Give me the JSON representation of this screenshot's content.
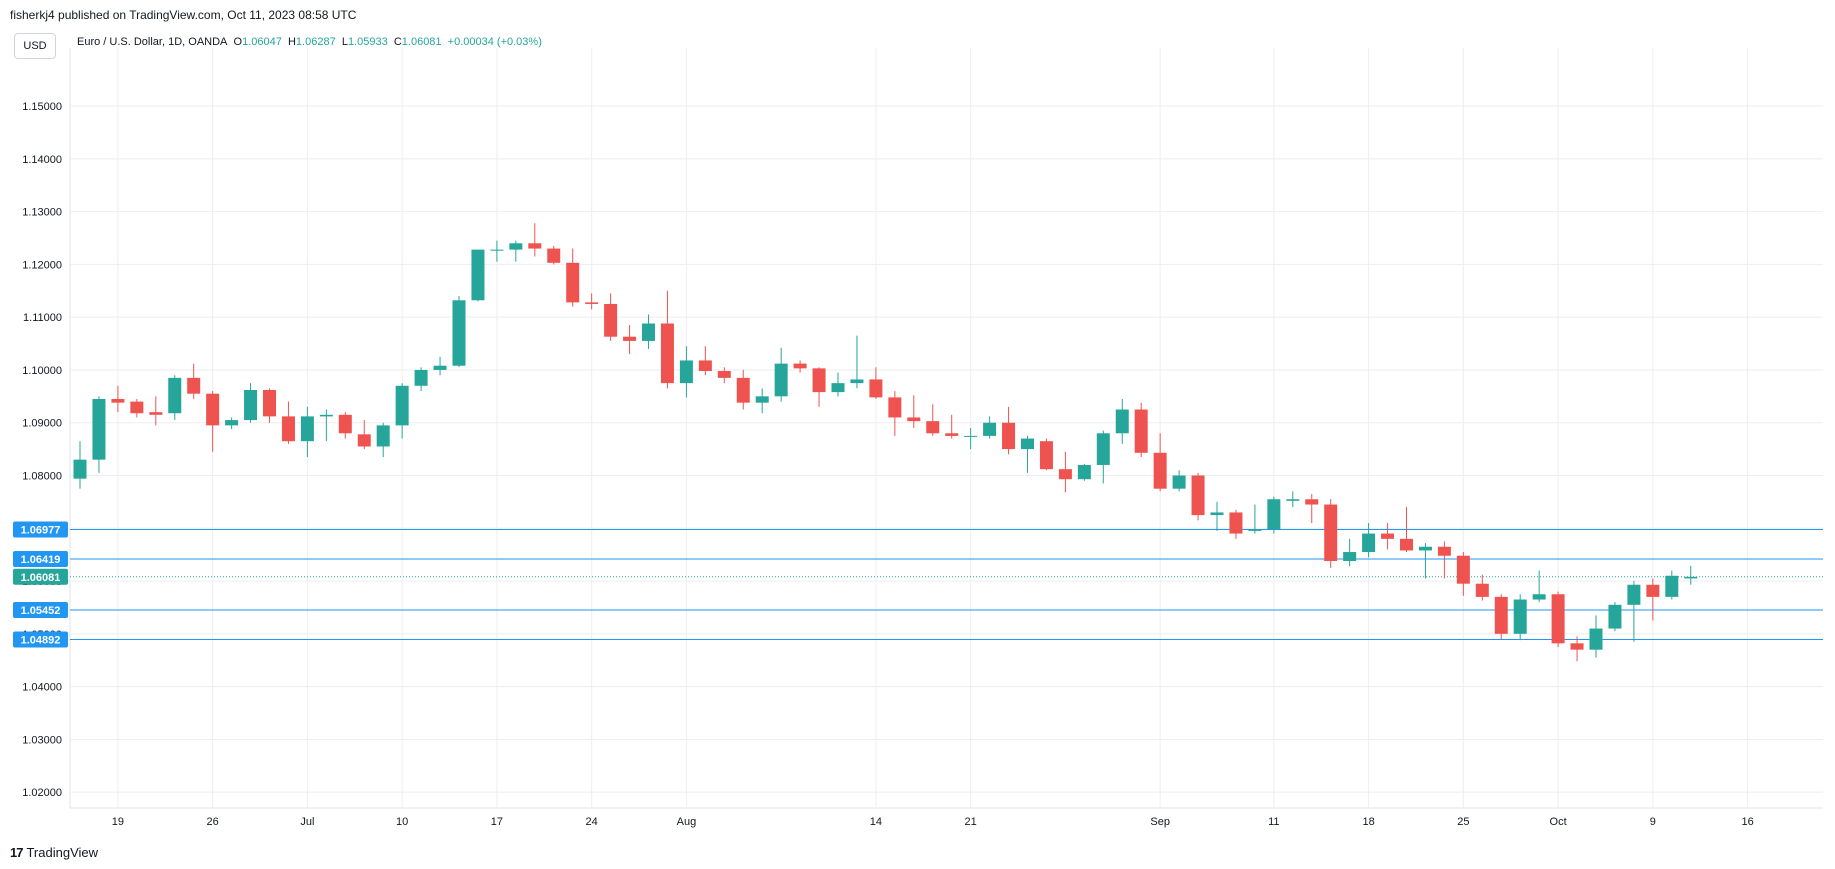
{
  "header": {
    "published": "fisherkj4 published on TradingView.com, Oct 11, 2023 08:58 UTC"
  },
  "toolbar": {
    "currency": "USD"
  },
  "legend": {
    "symbol": "Euro / U.S. Dollar, 1D, OANDA",
    "o_label": "O",
    "o_value": "1.06047",
    "h_label": "H",
    "h_value": "1.06287",
    "l_label": "L",
    "l_value": "1.05933",
    "c_label": "C",
    "c_value": "1.06081",
    "change": "+0.00034 (+0.03%)"
  },
  "footer": {
    "brand": "TradingView",
    "logo_text": "17"
  },
  "colors": {
    "up": "#26a69a",
    "down": "#ef5350",
    "hline": "#2196f3",
    "grid": "#eeeeee",
    "current": "#26a69a"
  },
  "chart_data": {
    "type": "candlestick",
    "title": "Euro / U.S. Dollar, 1D, OANDA",
    "ylim": [
      1.017,
      1.161
    ],
    "y_ticks": [
      "1.15000",
      "1.14000",
      "1.13000",
      "1.12000",
      "1.11000",
      "1.10000",
      "1.09000",
      "1.08000",
      "1.07000",
      "1.06000",
      "1.05000",
      "1.04000",
      "1.03000",
      "1.02000"
    ],
    "y_tick_values": [
      1.15,
      1.14,
      1.13,
      1.12,
      1.11,
      1.1,
      1.09,
      1.08,
      1.07,
      1.06,
      1.05,
      1.04,
      1.03,
      1.02
    ],
    "x_ticks": [
      {
        "label": "19",
        "index": 2
      },
      {
        "label": "26",
        "index": 7
      },
      {
        "label": "Jul",
        "index": 12
      },
      {
        "label": "10",
        "index": 17
      },
      {
        "label": "17",
        "index": 22
      },
      {
        "label": "24",
        "index": 27
      },
      {
        "label": "Aug",
        "index": 32
      },
      {
        "label": "14",
        "index": 42
      },
      {
        "label": "21",
        "index": 47
      },
      {
        "label": "Sep",
        "index": 57
      },
      {
        "label": "11",
        "index": 63
      },
      {
        "label": "18",
        "index": 68
      },
      {
        "label": "25",
        "index": 73
      },
      {
        "label": "Oct",
        "index": 78
      },
      {
        "label": "9",
        "index": 83
      },
      {
        "label": "16",
        "index": 88
      }
    ],
    "horizontal_levels": [
      {
        "label": "1.06977",
        "value": 1.06977
      },
      {
        "label": "1.06419",
        "value": 1.06419
      },
      {
        "label": "1.05452",
        "value": 1.05452
      },
      {
        "label": "1.04892",
        "value": 1.04892
      }
    ],
    "current_price": {
      "label": "1.06081",
      "value": 1.06081
    },
    "candles": [
      [
        1.0794,
        1.0865,
        1.0775,
        1.083
      ],
      [
        1.083,
        1.095,
        1.0805,
        1.0945
      ],
      [
        1.0945,
        1.097,
        1.092,
        1.0938
      ],
      [
        1.094,
        1.0945,
        1.091,
        1.0918
      ],
      [
        1.092,
        1.095,
        1.0895,
        1.0915
      ],
      [
        1.0918,
        1.099,
        1.0905,
        1.0985
      ],
      [
        1.0985,
        1.1012,
        1.0945,
        1.0955
      ],
      [
        1.0955,
        1.096,
        1.0845,
        1.0895
      ],
      [
        1.0895,
        1.091,
        1.0888,
        1.0905
      ],
      [
        1.0905,
        1.0975,
        1.09,
        1.0962
      ],
      [
        1.0962,
        1.0965,
        1.09,
        1.0912
      ],
      [
        1.0912,
        1.094,
        1.086,
        1.0865
      ],
      [
        1.0865,
        1.093,
        1.0835,
        1.0912
      ],
      [
        1.0912,
        1.0925,
        1.0865,
        1.0915
      ],
      [
        1.0915,
        1.092,
        1.087,
        1.088
      ],
      [
        1.0878,
        1.0905,
        1.085,
        1.0855
      ],
      [
        1.0855,
        1.09,
        1.0835,
        1.0895
      ],
      [
        1.0895,
        1.0975,
        1.087,
        1.097
      ],
      [
        1.097,
        1.1005,
        1.096,
        1.1
      ],
      [
        1.1,
        1.1025,
        1.099,
        1.1008
      ],
      [
        1.1008,
        1.114,
        1.1005,
        1.1132
      ],
      [
        1.1132,
        1.1228,
        1.113,
        1.1228
      ],
      [
        1.1226,
        1.1245,
        1.1205,
        1.1228
      ],
      [
        1.1228,
        1.1245,
        1.1205,
        1.124
      ],
      [
        1.124,
        1.1278,
        1.1215,
        1.123
      ],
      [
        1.123,
        1.1235,
        1.12,
        1.1203
      ],
      [
        1.1203,
        1.123,
        1.112,
        1.1128
      ],
      [
        1.1128,
        1.1145,
        1.1115,
        1.1125
      ],
      [
        1.1125,
        1.1145,
        1.1055,
        1.1063
      ],
      [
        1.1063,
        1.1085,
        1.103,
        1.1055
      ],
      [
        1.1055,
        1.1105,
        1.104,
        1.1088
      ],
      [
        1.1088,
        1.115,
        1.0965,
        1.0975
      ],
      [
        1.0975,
        1.1045,
        1.0948,
        1.1018
      ],
      [
        1.1018,
        1.1045,
        1.099,
        1.0998
      ],
      [
        1.0998,
        1.1005,
        1.0975,
        1.0985
      ],
      [
        1.0985,
        1.1,
        1.0925,
        1.0938
      ],
      [
        1.0938,
        1.0965,
        1.0918,
        1.095
      ],
      [
        1.095,
        1.1042,
        1.094,
        1.1012
      ],
      [
        1.1012,
        1.1018,
        1.0995,
        1.1003
      ],
      [
        1.1003,
        1.1005,
        1.093,
        1.0958
      ],
      [
        1.0958,
        1.0995,
        1.095,
        1.0975
      ],
      [
        1.0975,
        1.1065,
        1.0965,
        1.0982
      ],
      [
        1.0982,
        1.1005,
        1.0945,
        1.0948
      ],
      [
        1.0948,
        1.096,
        1.0875,
        1.091
      ],
      [
        1.091,
        1.0952,
        1.089,
        1.0903
      ],
      [
        1.0903,
        1.0935,
        1.0875,
        1.088
      ],
      [
        1.088,
        1.0915,
        1.087,
        1.0875
      ],
      [
        1.0875,
        1.089,
        1.085,
        1.0875
      ],
      [
        1.0875,
        1.0912,
        1.087,
        1.09
      ],
      [
        1.09,
        1.093,
        1.084,
        1.085
      ],
      [
        1.085,
        1.0875,
        1.0805,
        1.087
      ],
      [
        1.0865,
        1.087,
        1.081,
        1.0812
      ],
      [
        1.0812,
        1.0845,
        1.0768,
        1.0793
      ],
      [
        1.0793,
        1.0822,
        1.079,
        1.082
      ],
      [
        1.082,
        1.0885,
        1.0785,
        1.088
      ],
      [
        1.088,
        1.0945,
        1.086,
        1.0925
      ],
      [
        1.0925,
        1.0938,
        1.0835,
        1.0843
      ],
      [
        1.0843,
        1.088,
        1.077,
        1.0775
      ],
      [
        1.0775,
        1.081,
        1.077,
        1.08
      ],
      [
        1.08,
        1.0805,
        1.0715,
        1.0725
      ],
      [
        1.0725,
        1.075,
        1.0695,
        1.073
      ],
      [
        1.073,
        1.0735,
        1.068,
        1.069
      ],
      [
        1.0695,
        1.0745,
        1.069,
        1.0698
      ],
      [
        1.0698,
        1.076,
        1.069,
        1.0755
      ],
      [
        1.0752,
        1.077,
        1.074,
        1.0755
      ],
      [
        1.0755,
        1.0765,
        1.071,
        1.0745
      ],
      [
        1.0745,
        1.0755,
        1.0625,
        1.0638
      ],
      [
        1.0638,
        1.068,
        1.0628,
        1.0655
      ],
      [
        1.0655,
        1.071,
        1.0645,
        1.069
      ],
      [
        1.069,
        1.071,
        1.066,
        1.068
      ],
      [
        1.068,
        1.074,
        1.0655,
        1.0658
      ],
      [
        1.0658,
        1.0672,
        1.0605,
        1.0665
      ],
      [
        1.0665,
        1.0675,
        1.0605,
        1.0648
      ],
      [
        1.0648,
        1.0655,
        1.0572,
        1.0595
      ],
      [
        1.0595,
        1.0612,
        1.0563,
        1.057
      ],
      [
        1.057,
        1.0575,
        1.049,
        1.05
      ],
      [
        1.05,
        1.0575,
        1.0488,
        1.0565
      ],
      [
        1.0565,
        1.062,
        1.056,
        1.0575
      ],
      [
        1.0575,
        1.058,
        1.0475,
        1.0482
      ],
      [
        1.0482,
        1.0495,
        1.0448,
        1.047
      ],
      [
        1.047,
        1.0535,
        1.0455,
        1.051
      ],
      [
        1.051,
        1.056,
        1.0505,
        1.0555
      ],
      [
        1.0555,
        1.06,
        1.0485,
        1.0593
      ],
      [
        1.0593,
        1.0605,
        1.0525,
        1.057
      ],
      [
        1.057,
        1.062,
        1.0565,
        1.061
      ],
      [
        1.0605,
        1.0629,
        1.0593,
        1.0608
      ]
    ]
  }
}
